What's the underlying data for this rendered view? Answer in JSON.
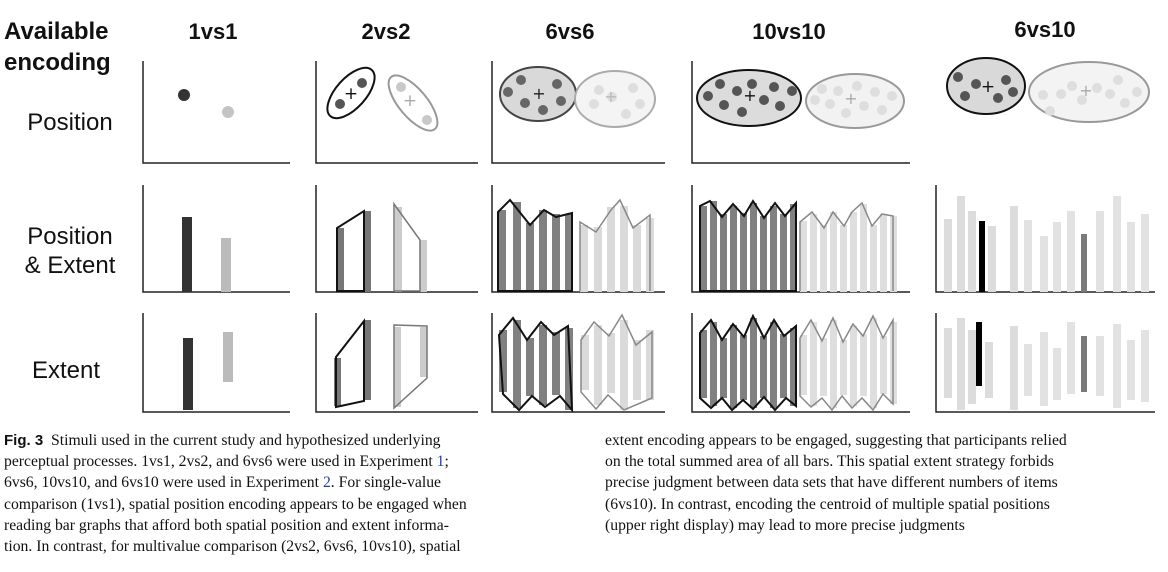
{
  "header": {
    "available_line1": "Available",
    "available_line2": "encoding",
    "columns": [
      "1vs1",
      "2vs2",
      "6vs6",
      "10vs10",
      "6vs10"
    ]
  },
  "rows": {
    "position": "Position",
    "position_extent_line1": "Position",
    "position_extent_line2": "& Extent",
    "extent": "Extent"
  },
  "caption": {
    "fig_label": "Fig. 3",
    "l1": "Stimuli used in the current study and hypothesized underlying",
    "l2": "perceptual processes. 1vs1, 2vs2, and 6vs6 were used in Experiment",
    "l2_ref": "1",
    "l2_end": ";",
    "l3": "6vs6, 10vs10, and 6vs10 were used in Experiment",
    "l3_ref": "2",
    "l3_end": ". For single-value",
    "l4": "comparison (1vs1), spatial position encoding appears to be engaged when",
    "l5": "reading bar graphs that afford both spatial position and extent informa-",
    "l6": "tion. In contrast, for multivalue comparison (2vs2, 6vs6, 10vs10), spatial",
    "r1": "extent encoding appears to be engaged, suggesting that participants relied",
    "r2": "on the total summed area of all bars. This spatial extent strategy forbids",
    "r3": "precise judgment between data sets that have different numbers of items",
    "r4": "(6vs10). In contrast, encoding the centroid of multiple spatial positions",
    "r5": "(upper right display) may lead to more precise judgments"
  },
  "colors": {
    "dark": "#555555",
    "light": "#c8c8c8",
    "darkest": "#333333",
    "black": "#000000"
  }
}
